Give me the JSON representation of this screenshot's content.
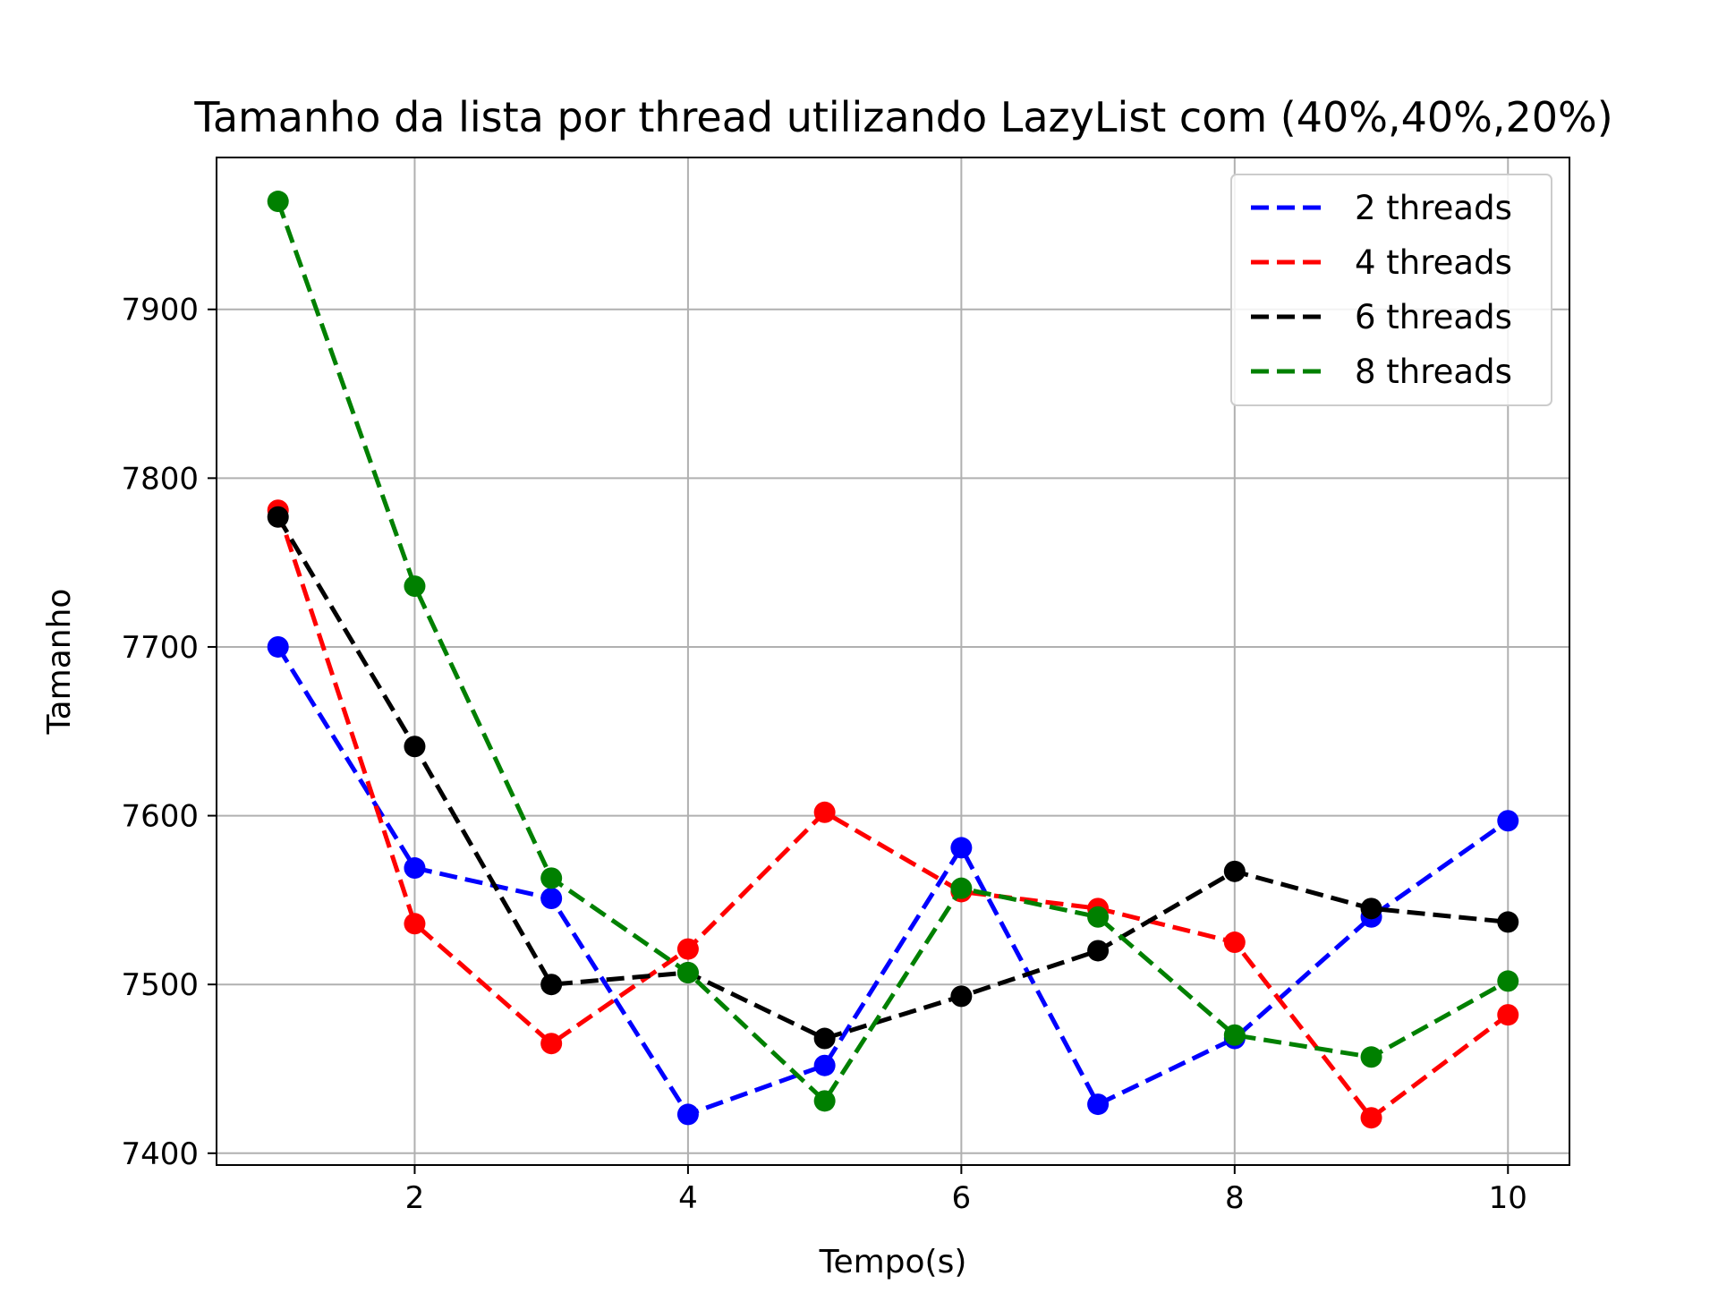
{
  "chart_data": {
    "type": "line",
    "title": "Tamanho da lista por thread utilizando LazyList com (40%,40%,20%)",
    "xlabel": "Tempo(s)",
    "ylabel": "Tamanho",
    "x": [
      1,
      2,
      3,
      4,
      5,
      6,
      7,
      8,
      9,
      10
    ],
    "xlim": [
      0.55,
      10.45
    ],
    "ylim": [
      7393,
      7990
    ],
    "xticks": [
      2,
      4,
      6,
      8,
      10
    ],
    "xtick_labels": [
      "2",
      "4",
      "6",
      "8",
      "10"
    ],
    "yticks": [
      7400,
      7500,
      7600,
      7700,
      7800,
      7900
    ],
    "ytick_labels": [
      "7400",
      "7500",
      "7600",
      "7700",
      "7800",
      "7900"
    ],
    "grid": true,
    "legend_position": "top-right",
    "line_style": "dashed",
    "markers": "circle",
    "series": [
      {
        "name": "2 threads",
        "color": "#0000ff",
        "values": [
          7700,
          7569,
          7551,
          7423,
          7452,
          7581,
          7429,
          7468,
          7540,
          7597
        ]
      },
      {
        "name": "4 threads",
        "color": "#ff0000",
        "values": [
          7781,
          7536,
          7465,
          7521,
          7602,
          7555,
          7545,
          7525,
          7421,
          7482
        ]
      },
      {
        "name": "6 threads",
        "color": "#000000",
        "values": [
          7777,
          7641,
          7500,
          7507,
          7468,
          7493,
          7520,
          7567,
          7545,
          7537
        ]
      },
      {
        "name": "8 threads",
        "color": "#008000",
        "values": [
          7964,
          7736,
          7563,
          7507,
          7431,
          7557,
          7540,
          7470,
          7457,
          7502
        ]
      }
    ]
  }
}
